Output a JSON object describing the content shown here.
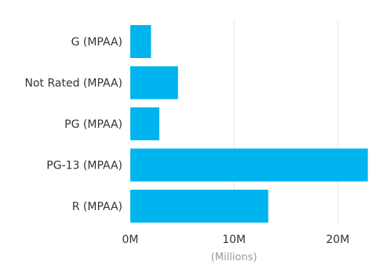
{
  "chart_data": {
    "type": "bar",
    "orientation": "horizontal",
    "categories": [
      "G (MPAA)",
      "Not Rated (MPAA)",
      "PG (MPAA)",
      "PG-13 (MPAA)",
      "R (MPAA)"
    ],
    "values": [
      2.0,
      4.6,
      2.8,
      22.9,
      13.3
    ],
    "xlim": [
      0,
      23
    ],
    "x_ticks": [
      0,
      10,
      20
    ],
    "x_tick_labels": [
      "0M",
      "10M",
      "20M"
    ],
    "xlabel": "(Millions)",
    "grid": true,
    "bar_color": "#00b4f0"
  }
}
